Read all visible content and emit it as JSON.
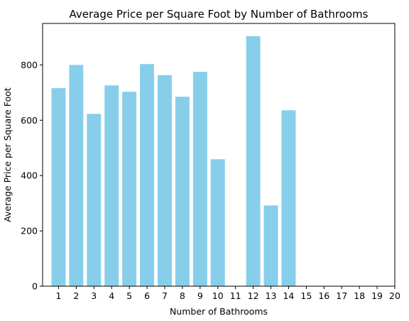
{
  "chart_data": {
    "type": "bar",
    "title": "Average Price per Square Foot by Number of Bathrooms",
    "xlabel": "Number of Bathrooms",
    "ylabel": "Average Price per Square Foot",
    "categories": [
      1,
      2,
      3,
      4,
      5,
      6,
      7,
      8,
      9,
      10,
      12,
      13,
      14
    ],
    "values": [
      716,
      800,
      623,
      726,
      703,
      803,
      763,
      685,
      775,
      459,
      904,
      292,
      636
    ],
    "x_ticks": [
      1,
      2,
      3,
      4,
      5,
      6,
      7,
      8,
      9,
      10,
      11,
      12,
      13,
      14,
      15,
      16,
      17,
      18,
      19,
      20
    ],
    "y_ticks": [
      0,
      200,
      400,
      600,
      800
    ],
    "xlim": [
      0.1,
      20.0
    ],
    "ylim": [
      0,
      950
    ],
    "bar_color": "#87ceeb",
    "grid": false,
    "legend": "none"
  }
}
